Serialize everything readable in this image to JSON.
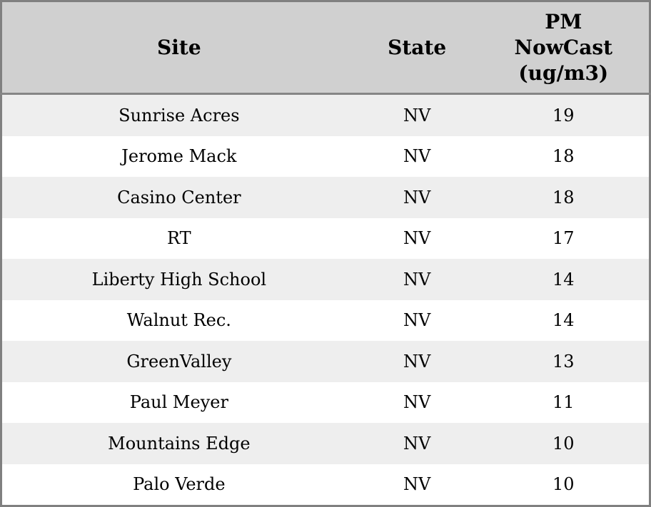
{
  "table": {
    "columns": [
      {
        "id": "site",
        "label": "Site"
      },
      {
        "id": "state",
        "label": "State"
      },
      {
        "id": "pm_nowcast",
        "label": "PM\nNowCast\n(ug/m3)"
      }
    ],
    "rows": [
      {
        "site": "Sunrise Acres",
        "state": "NV",
        "pm_nowcast": "19"
      },
      {
        "site": "Jerome Mack",
        "state": "NV",
        "pm_nowcast": "18"
      },
      {
        "site": "Casino Center",
        "state": "NV",
        "pm_nowcast": "18"
      },
      {
        "site": "RT",
        "state": "NV",
        "pm_nowcast": "17"
      },
      {
        "site": "Liberty High School",
        "state": "NV",
        "pm_nowcast": "14"
      },
      {
        "site": "Walnut Rec.",
        "state": "NV",
        "pm_nowcast": "14"
      },
      {
        "site": "GreenValley",
        "state": "NV",
        "pm_nowcast": "13"
      },
      {
        "site": "Paul Meyer",
        "state": "NV",
        "pm_nowcast": "11"
      },
      {
        "site": "Mountains Edge",
        "state": "NV",
        "pm_nowcast": "10"
      },
      {
        "site": "Palo Verde",
        "state": "NV",
        "pm_nowcast": "10"
      }
    ]
  },
  "colors": {
    "header_background": "#d0d0d0",
    "stripe_row_background": "#eeeeee",
    "plain_row_background": "#ffffff",
    "outer_border": "#808080",
    "header_rule": "#868686",
    "text": "#000000"
  },
  "chart_data": {
    "type": "table",
    "title": "",
    "columns": [
      "Site",
      "State",
      "PM NowCast (ug/m3)"
    ],
    "rows": [
      [
        "Sunrise Acres",
        "NV",
        19
      ],
      [
        "Jerome Mack",
        "NV",
        18
      ],
      [
        "Casino Center",
        "NV",
        18
      ],
      [
        "RT",
        "NV",
        17
      ],
      [
        "Liberty High School",
        "NV",
        14
      ],
      [
        "Walnut Rec.",
        "NV",
        14
      ],
      [
        "GreenValley",
        "NV",
        13
      ],
      [
        "Paul Meyer",
        "NV",
        11
      ],
      [
        "Mountains Edge",
        "NV",
        10
      ],
      [
        "Palo Verde",
        "NV",
        10
      ]
    ],
    "layout_hints": {
      "striped_rows": true,
      "header_bold": true,
      "all_cells_centered": true
    }
  }
}
